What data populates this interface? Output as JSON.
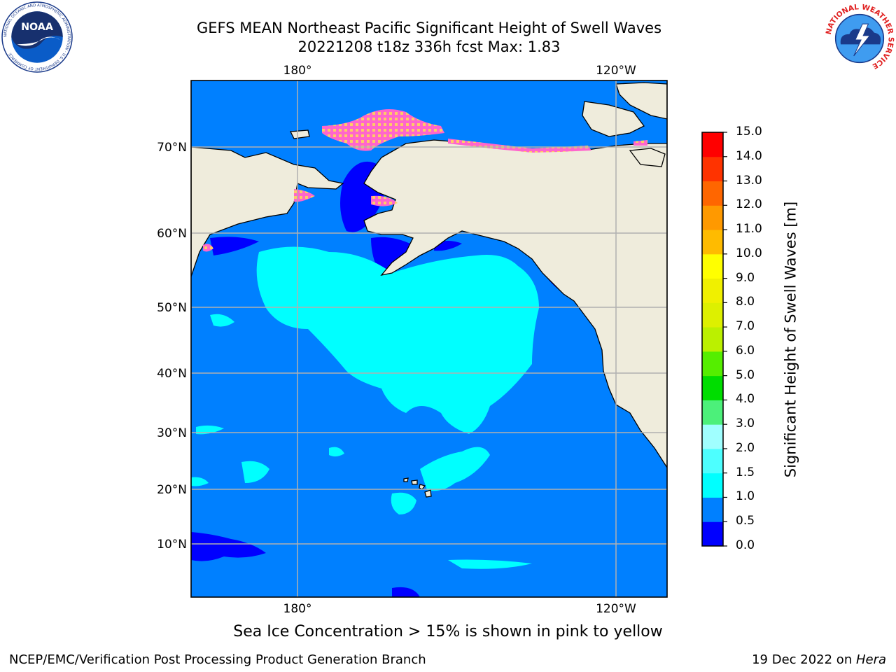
{
  "header": {
    "title_line1": "GEFS MEAN Northeast Pacific Significant Height of Swell Waves",
    "title_line2": "20221208 t18z 336h fcst   Max: 1.83"
  },
  "logos": {
    "left": "noaa-logo",
    "left_text": "NOAA",
    "left_ring_text": "NATIONAL OCEANIC AND ATMOSPHERIC ADMINISTRATION · U.S. DEPARTMENT OF COMMERCE",
    "right": "national-weather-service-logo",
    "right_ring_text": "NATIONAL WEATHER SERVICE"
  },
  "map": {
    "lon_labels": [
      "180°",
      "120°W"
    ],
    "lat_labels": [
      "70°N",
      "60°N",
      "50°N",
      "40°N",
      "30°N",
      "20°N",
      "10°N"
    ],
    "grid": true,
    "land_color": "#efecdc",
    "coastline_color": "#000000",
    "grid_color": "#b0b0b0"
  },
  "colorbar": {
    "title": "Significant Height of Swell Waves [m]",
    "ticks": [
      "15.0",
      "14.0",
      "13.0",
      "12.0",
      "11.0",
      "10.0",
      "9.0",
      "8.0",
      "7.0",
      "6.0",
      "5.0",
      "4.0",
      "3.0",
      "2.0",
      "1.5",
      "1.0",
      "0.5",
      "0.0"
    ],
    "bins": [
      {
        "min": 0.0,
        "max": 0.5,
        "color": "#0000ff"
      },
      {
        "min": 0.5,
        "max": 1.0,
        "color": "#0080ff"
      },
      {
        "min": 1.0,
        "max": 1.5,
        "color": "#00ffff"
      },
      {
        "min": 1.5,
        "max": 2.0,
        "color": "#4dffff"
      },
      {
        "min": 2.0,
        "max": 3.0,
        "color": "#a0ffff"
      },
      {
        "min": 3.0,
        "max": 4.0,
        "color": "#4cf07a"
      },
      {
        "min": 4.0,
        "max": 5.0,
        "color": "#00dd00"
      },
      {
        "min": 5.0,
        "max": 6.0,
        "color": "#55ee00"
      },
      {
        "min": 6.0,
        "max": 7.0,
        "color": "#bbf000"
      },
      {
        "min": 7.0,
        "max": 8.0,
        "color": "#ddf000"
      },
      {
        "min": 8.0,
        "max": 9.0,
        "color": "#f0f000"
      },
      {
        "min": 9.0,
        "max": 10.0,
        "color": "#ffff00"
      },
      {
        "min": 10.0,
        "max": 11.0,
        "color": "#ffbb00"
      },
      {
        "min": 11.0,
        "max": 12.0,
        "color": "#ff9900"
      },
      {
        "min": 12.0,
        "max": 13.0,
        "color": "#ff6600"
      },
      {
        "min": 13.0,
        "max": 14.0,
        "color": "#ff3300"
      },
      {
        "min": 14.0,
        "max": 15.0,
        "color": "#ff0000"
      }
    ]
  },
  "caption": "Sea Ice Concentration > 15% is shown in pink to yellow",
  "footer": {
    "left": "NCEP/EMC/Verification Post Processing Product Generation Branch",
    "date": "19 Dec 2022 on ",
    "machine": "Hera"
  }
}
